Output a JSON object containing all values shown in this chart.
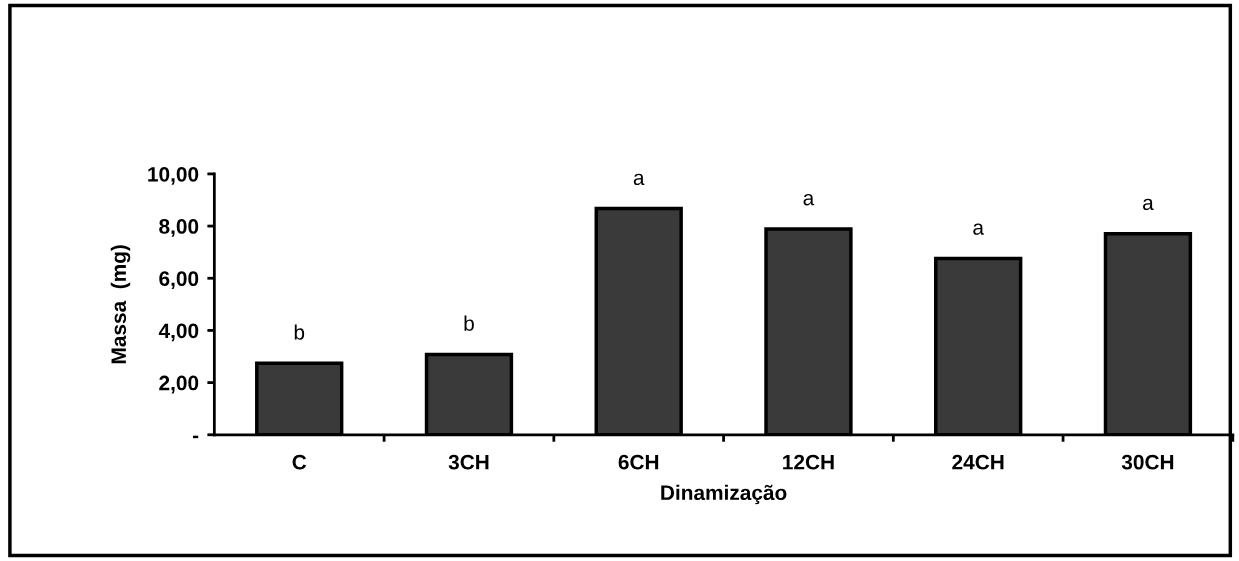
{
  "chart_data": {
    "type": "bar",
    "xlabel": "Dinamização",
    "ylabel": "Massa  (mg)",
    "categories": [
      "C",
      "3CH",
      "6CH",
      "12CH",
      "24CH",
      "30CH"
    ],
    "values": [
      2.74,
      3.08,
      8.67,
      7.89,
      6.76,
      7.71
    ],
    "color": "#3a3a3a",
    "ylim": [
      0,
      10
    ],
    "yticks": [
      {
        "value": 0,
        "label": "-"
      },
      {
        "value": 2,
        "label": "2,00"
      },
      {
        "value": 4,
        "label": "4,00"
      },
      {
        "value": 6,
        "label": "6,00"
      },
      {
        "value": 8,
        "label": "8,00"
      },
      {
        "value": 10,
        "label": "10,00"
      }
    ],
    "grid": false,
    "legend": false,
    "annotations": [
      {
        "text": "b",
        "x": "C",
        "y": 2.74
      },
      {
        "text": "b",
        "x": "3CH",
        "y": 3.08
      },
      {
        "text": "a",
        "x": "6CH",
        "y": 8.67
      },
      {
        "text": "a",
        "x": "12CH",
        "y": 7.89
      },
      {
        "text": "a",
        "x": "24CH",
        "y": 6.76
      },
      {
        "text": "a",
        "x": "30CH",
        "y": 7.71
      }
    ]
  }
}
